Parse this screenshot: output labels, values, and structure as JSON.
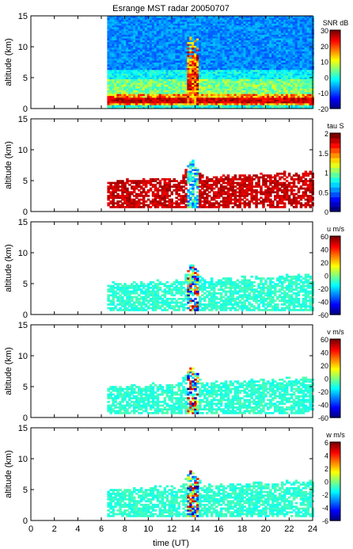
{
  "chart_data": {
    "type": "heatmap",
    "title": "Esrange MST radar 20050707",
    "xlabel": "time (UT)",
    "x_ticks": [
      0,
      2,
      4,
      6,
      8,
      10,
      12,
      14,
      16,
      18,
      20,
      22,
      24
    ],
    "xlim": [
      0,
      24
    ],
    "data_start_hour": 6.5,
    "panels": [
      {
        "ylabel": "altitude (km)",
        "ylim": [
          0,
          15
        ],
        "y_ticks": [
          0,
          5,
          10,
          15
        ],
        "colorbar_label": "SNR dB",
        "colorbar_range": [
          -20,
          30
        ],
        "colorbar_ticks": [
          30,
          20,
          10,
          0,
          -10,
          -20
        ]
      },
      {
        "ylabel": "altitude (km)",
        "ylim": [
          0,
          15
        ],
        "y_ticks": [
          0,
          5,
          10,
          15
        ],
        "colorbar_label": "tau S",
        "colorbar_range": [
          0,
          2
        ],
        "colorbar_ticks": [
          "2",
          "1.5",
          "1",
          "0.5",
          "0"
        ]
      },
      {
        "ylabel": "altitude (km)",
        "ylim": [
          0,
          15
        ],
        "y_ticks": [
          0,
          5,
          10,
          15
        ],
        "colorbar_label": "u m/s",
        "colorbar_range": [
          -60,
          60
        ],
        "colorbar_ticks": [
          60,
          40,
          20,
          0,
          -20,
          -40,
          -60
        ]
      },
      {
        "ylabel": "altitude (km)",
        "ylim": [
          0,
          15
        ],
        "y_ticks": [
          0,
          5,
          10,
          15
        ],
        "colorbar_label": "v m/s",
        "colorbar_range": [
          -60,
          60
        ],
        "colorbar_ticks": [
          60,
          40,
          20,
          0,
          -20,
          -40,
          -60
        ]
      },
      {
        "ylabel": "altitude (km)",
        "ylim": [
          0,
          15
        ],
        "y_ticks": [
          0,
          5,
          10,
          15
        ],
        "colorbar_label": "w m/s",
        "colorbar_range": [
          -6,
          6
        ],
        "colorbar_ticks": [
          6,
          4,
          2,
          0,
          -2,
          -4,
          -6
        ]
      }
    ]
  }
}
